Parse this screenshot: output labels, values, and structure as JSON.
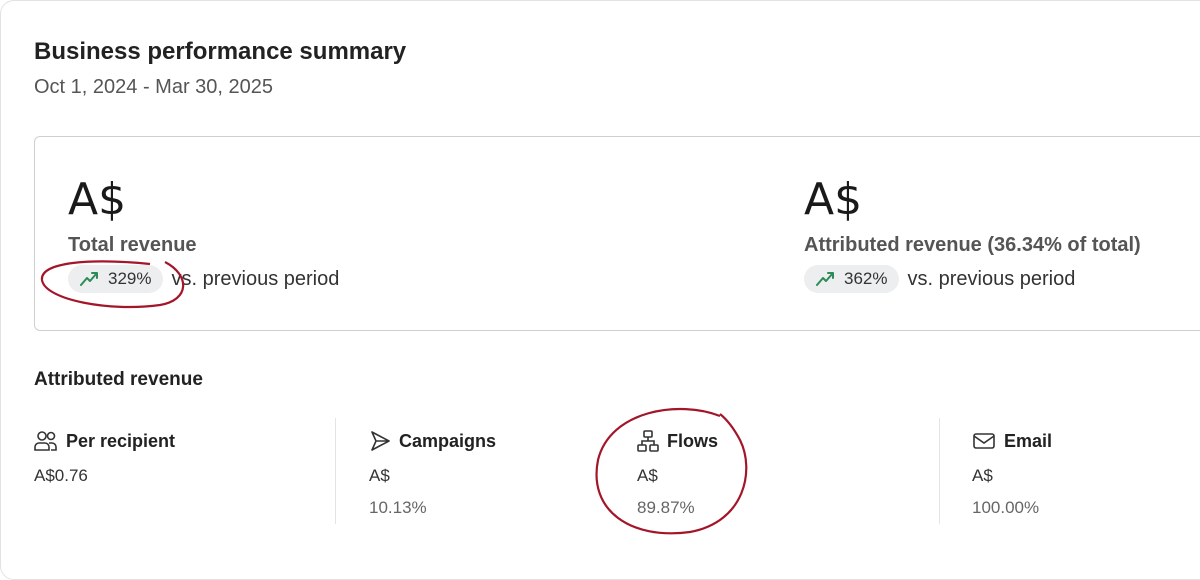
{
  "header": {
    "title": "Business performance summary",
    "date_range": "Oct 1, 2024 - Mar 30, 2025"
  },
  "summary": [
    {
      "value": "A$",
      "label": "Total revenue",
      "change": "329%",
      "change_suffix": "vs. previous period",
      "trend_icon": "trending-up-icon"
    },
    {
      "value": "A$",
      "label": "Attributed revenue (36.34% of total)",
      "change": "362%",
      "change_suffix": "vs. previous period",
      "trend_icon": "trending-up-icon"
    }
  ],
  "attributed": {
    "title": "Attributed revenue",
    "columns": [
      {
        "icon": "users-icon",
        "label": "Per recipient",
        "value": "A$0.76",
        "pct": ""
      },
      {
        "icon": "send-icon",
        "label": "Campaigns",
        "value": "A$",
        "pct": "10.13%"
      },
      {
        "icon": "flow-icon",
        "label": "Flows",
        "value": "A$",
        "pct": "89.87%"
      },
      {
        "icon": "mail-icon",
        "label": "Email",
        "value": "A$",
        "pct": "100.00%"
      }
    ]
  },
  "colors": {
    "trend_up": "#2e8b57",
    "annotation": "#a3162a"
  }
}
